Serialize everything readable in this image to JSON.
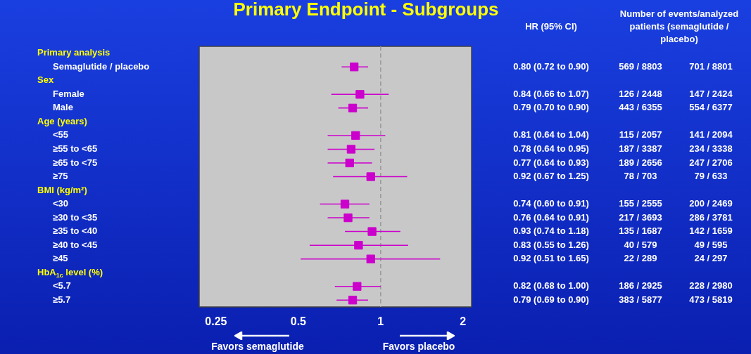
{
  "chart_data": {
    "type": "scatter",
    "title": "Primary Endpoint - Subgroups",
    "orientation": "horizontal",
    "log": "x",
    "categories": [
      null,
      "Semaglutide / placebo",
      null,
      "Female",
      "Male",
      null,
      "<55",
      "≥55 to <65",
      "≥65 to <75",
      "≥75",
      null,
      "<30",
      "≥30 to <35",
      "≥35 to <40",
      "≥40 to <45",
      "≥45",
      null,
      "<5.7",
      "≥5.7"
    ],
    "values": [
      null,
      0.8,
      null,
      0.84,
      0.79,
      null,
      0.81,
      0.78,
      0.77,
      0.92,
      null,
      0.74,
      0.76,
      0.93,
      0.83,
      0.92,
      null,
      0.82,
      0.79
    ],
    "errors": [
      null,
      [
        0.72,
        0.9
      ],
      null,
      [
        0.66,
        1.07
      ],
      [
        0.7,
        0.9
      ],
      null,
      [
        0.64,
        1.04
      ],
      [
        0.64,
        0.95
      ],
      [
        0.64,
        0.93
      ],
      [
        0.67,
        1.25
      ],
      null,
      [
        0.6,
        0.91
      ],
      [
        0.64,
        0.91
      ],
      [
        0.74,
        1.18
      ],
      [
        0.55,
        1.26
      ],
      [
        0.51,
        1.65
      ],
      null,
      [
        0.68,
        1.0
      ],
      [
        0.69,
        0.9
      ]
    ],
    "value_labels": [
      null,
      "0.80 (0.72 to 0.90)",
      null,
      "0.84 (0.66 to 1.07)",
      "0.79 (0.70 to 0.90)",
      null,
      "0.81 (0.64 to 1.04)",
      "0.78 (0.64 to 0.95)",
      "0.77 (0.64 to 0.93)",
      "0.92 (0.67 to 1.25)",
      null,
      "0.74 (0.60 to 0.91)",
      "0.76 (0.64 to 0.91)",
      "0.93 (0.74 to 1.18)",
      "0.83 (0.55 to 1.26)",
      "0.92 (0.51 to 1.65)",
      null,
      "0.82 (0.68 to 1.00)",
      "0.79 (0.69 to 0.90)"
    ],
    "color": "#cc00cc",
    "marker": "square",
    "xlim": [
      0.217,
      2.15
    ],
    "xticks": [
      0.25,
      0.5,
      1,
      2
    ],
    "ref_lines": [
      {
        "axis": "x",
        "value": 1,
        "color": "#999999",
        "line_style": "dashed"
      }
    ],
    "annotations": [
      "HR (95% CI)",
      "Number of events/analyzed patients (semaglutide / placebo)",
      "Favors semaglutide",
      "Favors placebo",
      "Primary analysis",
      "Sex",
      "Age (years)",
      "BMI (kg/m²)",
      "HbA$_{1c}$ level (%)",
      "569 / 8803",
      "701 / 8801",
      "126 / 2448",
      "147 / 2424",
      "443 / 6355",
      "554 / 6377",
      "115 / 2057",
      "141 / 2094",
      "187 / 3387",
      "234 / 3338",
      "189 / 2656",
      "247 / 2706",
      "78 / 703",
      "79 / 633",
      "155 / 2555",
      "200 / 2469",
      "217 / 3693",
      "286 / 3781",
      "135 / 1687",
      "142 / 1659",
      "40 / 579",
      "49 / 595",
      "22 / 289",
      "24 / 297",
      "186 / 2925",
      "228 / 2980",
      "383 / 5877",
      "473 / 5819"
    ]
  }
}
